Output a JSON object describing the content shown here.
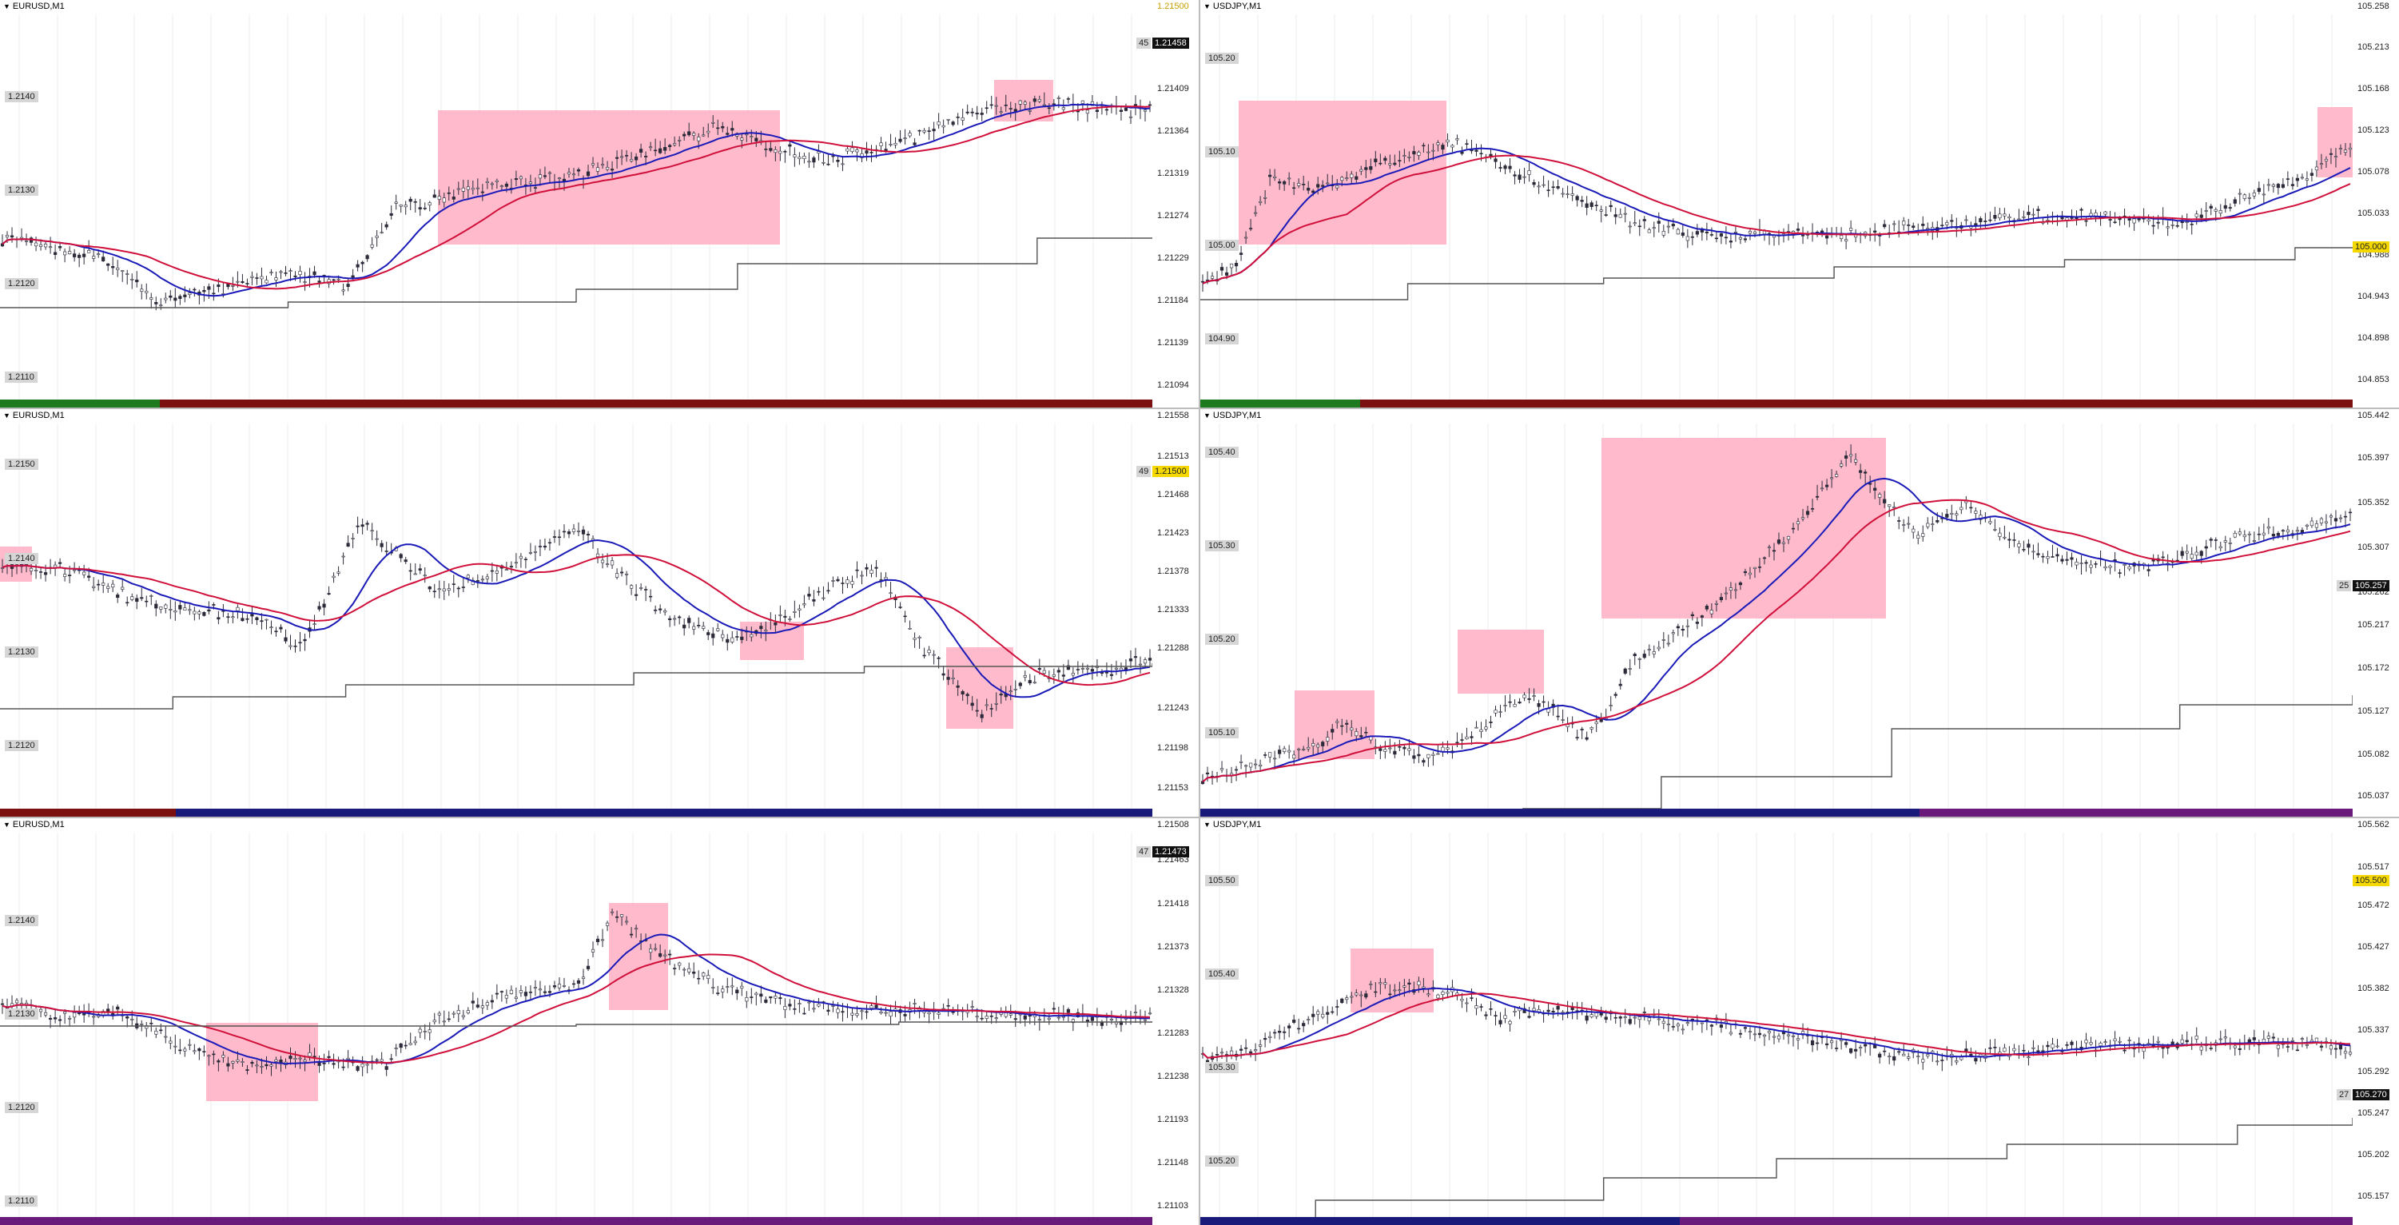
{
  "colors": {
    "ma_red": "#d0103a",
    "ma_blue": "#1a1ab8",
    "step_line": "#555555",
    "candle": "#2b2b3a",
    "zone": "#ffb3c6",
    "grid": "#eeeeee"
  },
  "panes": [
    {
      "id": "p1",
      "title": "EURUSD,M1",
      "scale": [
        "1.21409",
        "1.21364",
        "1.21319",
        "1.21274",
        "1.21229",
        "1.21184",
        "1.21139",
        "1.21094"
      ],
      "top_value": "1.21500",
      "levels": [
        "1.2140",
        "1.2130",
        "1.2120",
        "1.2110"
      ],
      "price_tag": {
        "count": "45",
        "value": "1.21458"
      },
      "strip": [
        "green",
        "darkred"
      ]
    },
    {
      "id": "p2",
      "title": "USDJPY,M1",
      "scale": [
        "105.258",
        "105.213",
        "105.168",
        "105.123",
        "105.078",
        "105.033",
        "104.988",
        "104.943",
        "104.898",
        "104.853"
      ],
      "top_value": "",
      "levels": [
        "105.20",
        "105.10",
        "105.00",
        "104.90"
      ],
      "price_tag": {
        "count": "",
        "value": "105.000"
      },
      "strip": [
        "green",
        "darkred"
      ]
    },
    {
      "id": "p3",
      "title": "EURUSD,M1",
      "scale": [
        "1.21558",
        "1.21513",
        "1.21468",
        "1.21423",
        "1.21378",
        "1.21333",
        "1.21288",
        "1.21243",
        "1.21198",
        "1.21153"
      ],
      "top_value": "",
      "levels": [
        "1.2150",
        "1.2140",
        "1.2130",
        "1.2120"
      ],
      "price_tag": {
        "count": "49",
        "value": "1.21500"
      },
      "strip": [
        "darkred",
        "navy"
      ]
    },
    {
      "id": "p4",
      "title": "USDJPY,M1",
      "scale": [
        "105.442",
        "105.397",
        "105.352",
        "105.307",
        "105.262",
        "105.217",
        "105.172",
        "105.127",
        "105.082",
        "105.037"
      ],
      "top_value": "",
      "levels": [
        "105.40",
        "105.30",
        "105.20",
        "105.10"
      ],
      "price_tag": {
        "count": "25",
        "value": "105.257"
      },
      "strip": [
        "navy",
        "purple"
      ]
    },
    {
      "id": "p5",
      "title": "EURUSD,M1",
      "scale": [
        "1.21508",
        "1.21463",
        "1.21418",
        "1.21373",
        "1.21328",
        "1.21283",
        "1.21238",
        "1.21193",
        "1.21148",
        "1.21103"
      ],
      "top_value": "",
      "levels": [
        "1.2140",
        "1.2130",
        "1.2120",
        "1.2110"
      ],
      "price_tag": {
        "count": "47",
        "value": "1.21473"
      },
      "strip": [
        "purple",
        "purple"
      ]
    },
    {
      "id": "p6",
      "title": "USDJPY,M1",
      "scale": [
        "105.562",
        "105.517",
        "105.472",
        "105.427",
        "105.382",
        "105.337",
        "105.292",
        "105.247",
        "105.202",
        "105.157"
      ],
      "top_value": "105.500",
      "levels": [
        "105.50",
        "105.40",
        "105.30",
        "105.20"
      ],
      "price_tag": {
        "count": "27",
        "value": "105.270"
      },
      "strip": [
        "navy",
        "purple"
      ]
    }
  ]
}
